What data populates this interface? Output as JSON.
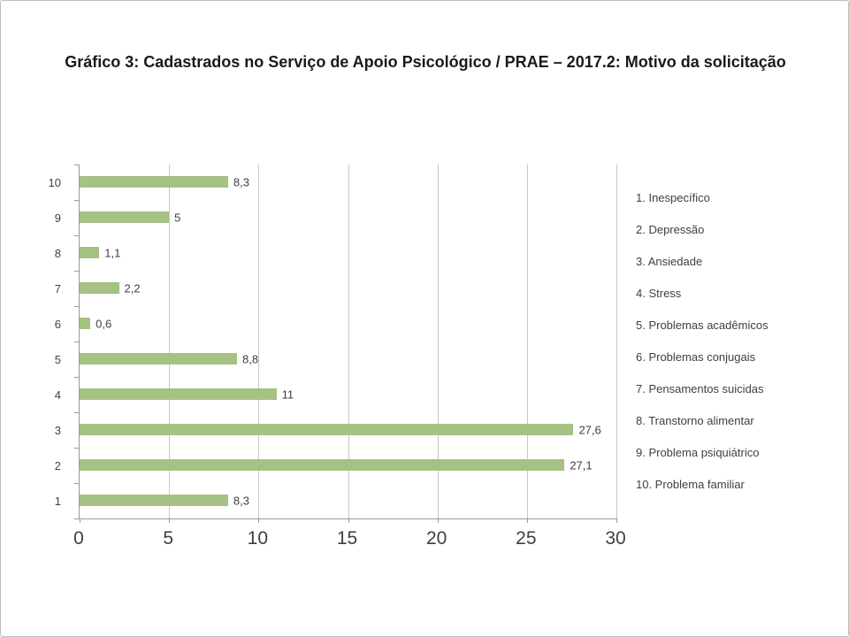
{
  "slide": {
    "title": "Gráfico 3: Cadastrados no Serviço de Apoio Psicológico / PRAE – 2017.2: Motivo da solicitação"
  },
  "chart_data": {
    "type": "bar",
    "orientation": "horizontal",
    "title": "Gráfico 3: Cadastrados no Serviço de Apoio Psicológico / PRAE – 2017.2: Motivo da solicitação",
    "categories": [
      "10",
      "9",
      "8",
      "7",
      "6",
      "5",
      "4",
      "3",
      "2",
      "1"
    ],
    "values": [
      8.3,
      5,
      1.1,
      2.2,
      0.6,
      8.8,
      11,
      27.6,
      27.1,
      8.3
    ],
    "value_labels": [
      "8,3",
      "5",
      "1,1",
      "2,2",
      "0,6",
      "8,8",
      "11",
      "27,6",
      "27,1",
      "8,3"
    ],
    "xlabel": "",
    "ylabel": "",
    "xlim": [
      0,
      30
    ],
    "x_ticks": [
      0,
      5,
      10,
      15,
      20,
      25,
      30
    ],
    "x_tick_labels": [
      "0",
      "5",
      "10",
      "15",
      "20",
      "25",
      "30"
    ],
    "grid": true,
    "bar_color": "#a6c184",
    "legend_position": "right",
    "legend": [
      "1. Inespecífico",
      "2. Depressão",
      "3. Ansiedade",
      "4. Stress",
      "5. Problemas acadêmicos",
      "6. Problemas conjugais",
      "7. Pensamentos suicidas",
      "8. Transtorno alimentar",
      "9. Problema psiquiátrico",
      "10. Problema familiar"
    ]
  }
}
